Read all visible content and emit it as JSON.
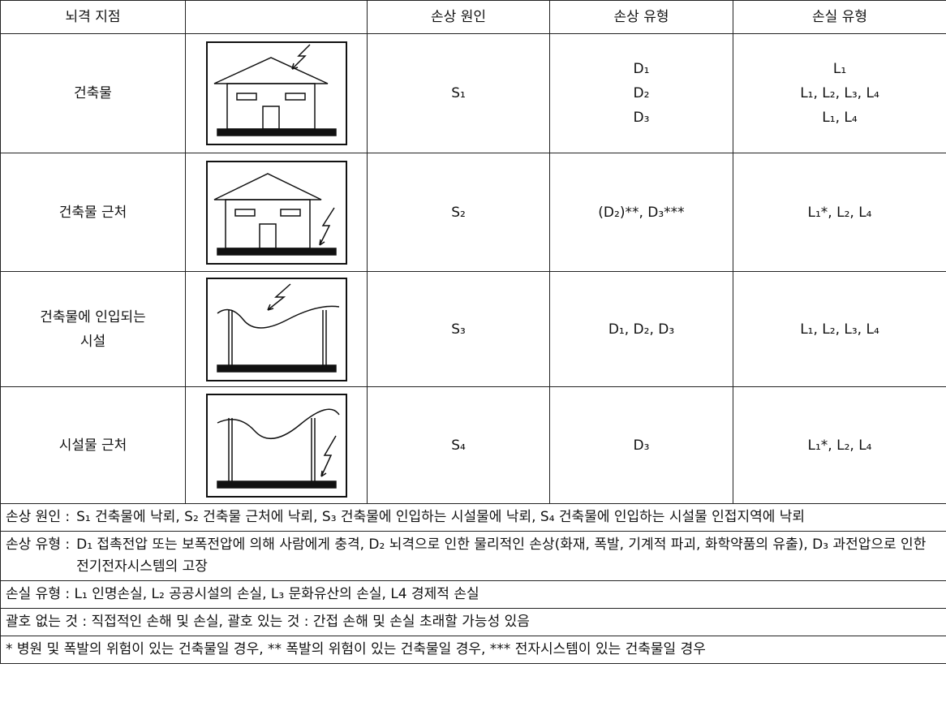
{
  "table": {
    "header": [
      "뇌격 지점",
      "손상 원인",
      "손상 유형",
      "손실 유형"
    ],
    "rows": [
      {
        "point": [
          "건축물"
        ],
        "cause": "S₁",
        "damage": [
          "D₁",
          "D₂",
          "D₃"
        ],
        "loss": [
          "L₁",
          "L₁, L₂, L₃, L₄",
          "L₁, L₄"
        ]
      },
      {
        "point": [
          "건축물 근처"
        ],
        "cause": "S₂",
        "damage": [
          "(D₂)**, D₃***"
        ],
        "loss": [
          "L₁*, L₂, L₄"
        ]
      },
      {
        "point": [
          "건축물에 인입되는",
          "시설"
        ],
        "cause": "S₃",
        "damage": [
          "D₁, D₂, D₃"
        ],
        "loss": [
          "L₁, L₂, L₃, L₄"
        ]
      },
      {
        "point": [
          "시설물 근처"
        ],
        "cause": "S₄",
        "damage": [
          "D₃"
        ],
        "loss": [
          "L₁*, L₂, L₄"
        ]
      }
    ],
    "notes": [
      {
        "label": "손상 원인 :",
        "text": "S₁ 건축물에 낙뢰, S₂ 건축물 근처에 낙뢰, S₃ 건축물에 인입하는 시설물에 낙뢰, S₄ 건축물에 인입하는 시설물 인접지역에 낙뢰"
      },
      {
        "label": "손상 유형 :",
        "text": "D₁ 접촉전압 또는 보폭전압에 의해 사람에게 충격, D₂ 뇌격으로 인한 물리적인 손상(화재, 폭발, 기계적 파괴, 화학약품의 유출), D₃ 과전압으로 인한 전기전자시스템의 고장"
      },
      {
        "text": "손실 유형 : L₁ 인명손실, L₂ 공공시설의 손실, L₃ 문화유산의 손실, L4 경제적 손실"
      },
      {
        "text": "괄호 없는 것 : 직접적인 손해 및 손실, 괄호 있는 것 : 간접 손해 및 손실 초래할 가능성 있음"
      },
      {
        "text": "* 병원 및 폭발의 위험이 있는 건축물일 경우, ** 폭발의 위험이 있는 건축물일 경우, *** 전자시스템이 있는 건축물일 경우"
      }
    ]
  }
}
